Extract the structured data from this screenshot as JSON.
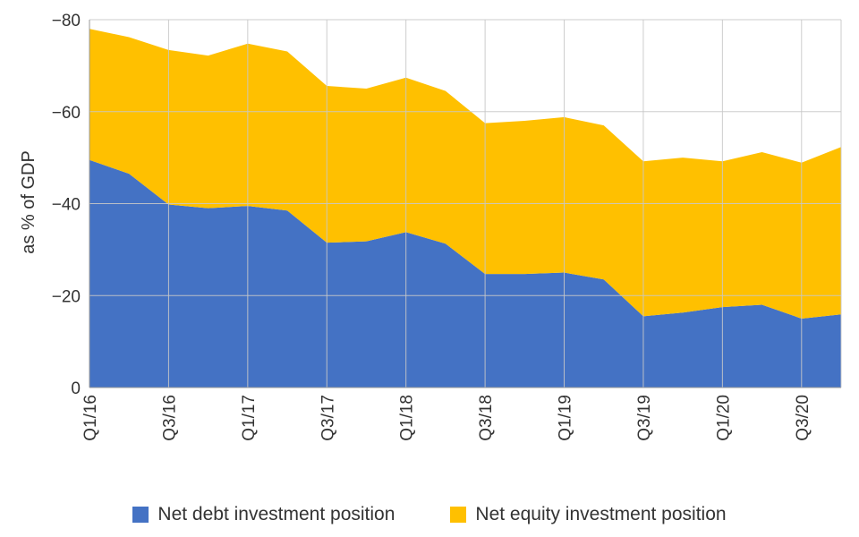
{
  "chart_data": {
    "type": "area",
    "stacked": true,
    "ylabel": "as % of GDP",
    "ylim": [
      0,
      -80
    ],
    "yticks": [
      -80,
      -60,
      -40,
      -20,
      0
    ],
    "ytick_labels": [
      "−80",
      "−60",
      "−40",
      "−20",
      "0"
    ],
    "x": [
      "Q1/16",
      "Q2/16",
      "Q3/16",
      "Q4/16",
      "Q1/17",
      "Q2/17",
      "Q3/17",
      "Q4/17",
      "Q1/18",
      "Q2/18",
      "Q3/18",
      "Q4/18",
      "Q1/19",
      "Q2/19",
      "Q3/19",
      "Q4/19",
      "Q1/20",
      "Q2/20",
      "Q3/20",
      "Q4/20"
    ],
    "xtick_labels": [
      "Q1/16",
      "Q3/16",
      "Q1/17",
      "Q3/17",
      "Q1/18",
      "Q3/18",
      "Q1/19",
      "Q3/19",
      "Q1/20",
      "Q3/20"
    ],
    "grid": true,
    "legend_position": "bottom",
    "series": [
      {
        "name": "Net debt investment position",
        "color": "#4472C4",
        "values": [
          -49.5,
          -46.5,
          -39.8,
          -39.0,
          -39.5,
          -38.5,
          -31.5,
          -31.8,
          -33.8,
          -31.3,
          -24.7,
          -24.7,
          -25.0,
          -23.5,
          -15.5,
          -16.3,
          -17.5,
          -18.0,
          -15.0,
          -15.9
        ]
      },
      {
        "name": "Net equity investment position",
        "color": "#FFC000",
        "values": [
          -28.5,
          -29.7,
          -33.6,
          -33.2,
          -35.3,
          -34.6,
          -34.1,
          -33.2,
          -33.6,
          -33.2,
          -32.8,
          -33.3,
          -33.8,
          -33.5,
          -33.7,
          -33.7,
          -31.7,
          -33.2,
          -33.9,
          -36.4
        ]
      }
    ]
  }
}
